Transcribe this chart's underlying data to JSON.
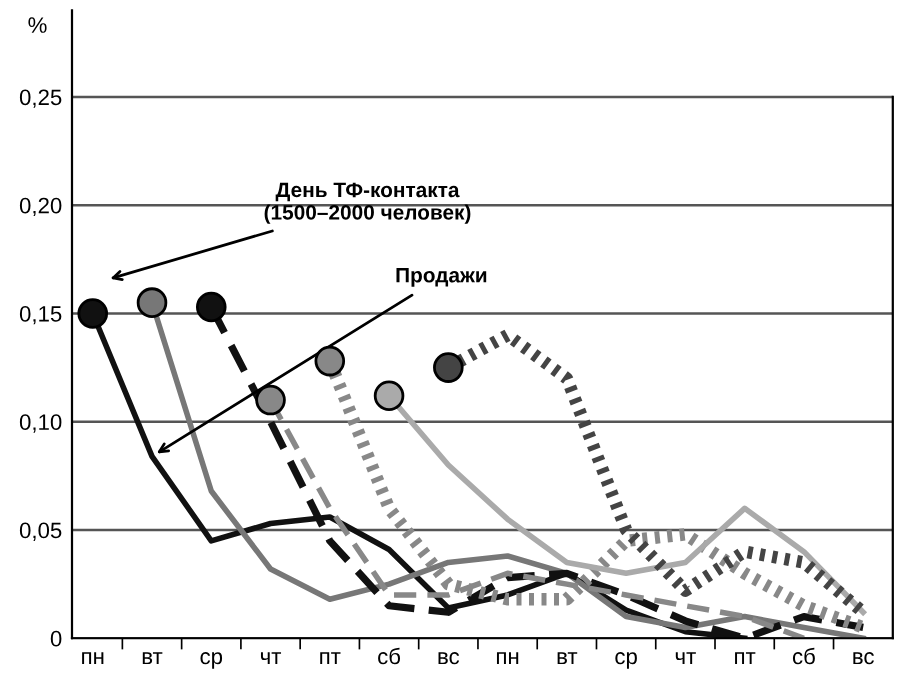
{
  "chart_data": {
    "type": "line",
    "ylabel": "%",
    "categories": [
      "пн",
      "вт",
      "ср",
      "чт",
      "пт",
      "сб",
      "вс",
      "пн",
      "вт",
      "ср",
      "чт",
      "пт",
      "сб",
      "вс"
    ],
    "series": [
      {
        "color": "#111111",
        "line_style": "solid",
        "values": [
          0.15,
          0.084,
          0.045,
          0.053,
          0.056,
          0.041,
          0.014,
          0.02,
          0.03,
          0.013,
          0.003,
          0.0,
          null,
          null
        ]
      },
      {
        "color": "#777777",
        "line_style": "solid",
        "values": [
          null,
          0.155,
          0.068,
          0.032,
          0.018,
          0.025,
          0.035,
          0.038,
          0.03,
          0.01,
          0.005,
          0.01,
          0.005,
          0.0
        ]
      },
      {
        "color": "#111111",
        "line_style": "dashed",
        "values": [
          null,
          null,
          0.153,
          0.1,
          0.045,
          0.015,
          0.012,
          0.028,
          0.03,
          0.02,
          0.008,
          0.0,
          0.01,
          0.005
        ]
      },
      {
        "color": "#888888",
        "line_style": "dashed",
        "values": [
          null,
          null,
          null,
          0.11,
          0.06,
          0.02,
          0.02,
          0.03,
          0.025,
          0.02,
          0.015,
          0.01,
          0.0,
          null
        ]
      },
      {
        "color": "#888888",
        "line_style": "dotted",
        "values": [
          null,
          null,
          null,
          null,
          0.128,
          0.06,
          0.025,
          0.018,
          0.018,
          0.045,
          0.048,
          0.03,
          0.015,
          0.005
        ]
      },
      {
        "color": "#aaaaaa",
        "line_style": "solid",
        "values": [
          null,
          null,
          null,
          null,
          null,
          0.112,
          0.08,
          0.055,
          0.035,
          0.03,
          0.035,
          0.06,
          0.04,
          0.012
        ]
      },
      {
        "color": "#444444",
        "line_style": "dotted",
        "values": [
          null,
          null,
          null,
          null,
          null,
          null,
          0.125,
          0.14,
          0.12,
          0.05,
          0.022,
          0.04,
          0.035,
          0.012
        ]
      }
    ],
    "ylim": [
      0,
      0.29
    ],
    "yticks": [
      {
        "value": 0,
        "label": "0"
      },
      {
        "value": 0.05,
        "label": "0,05"
      },
      {
        "value": 0.1,
        "label": "0,10"
      },
      {
        "value": 0.15,
        "label": "0,15"
      },
      {
        "value": 0.2,
        "label": "0,20"
      },
      {
        "value": 0.25,
        "label": "0,25"
      }
    ],
    "grid": "y",
    "annotations": [
      "День ТФ-контакта\n(1500–2000 человек)",
      {
        "text": "Продажи",
        "x": "вт",
        "y": 0.084
      }
    ]
  }
}
